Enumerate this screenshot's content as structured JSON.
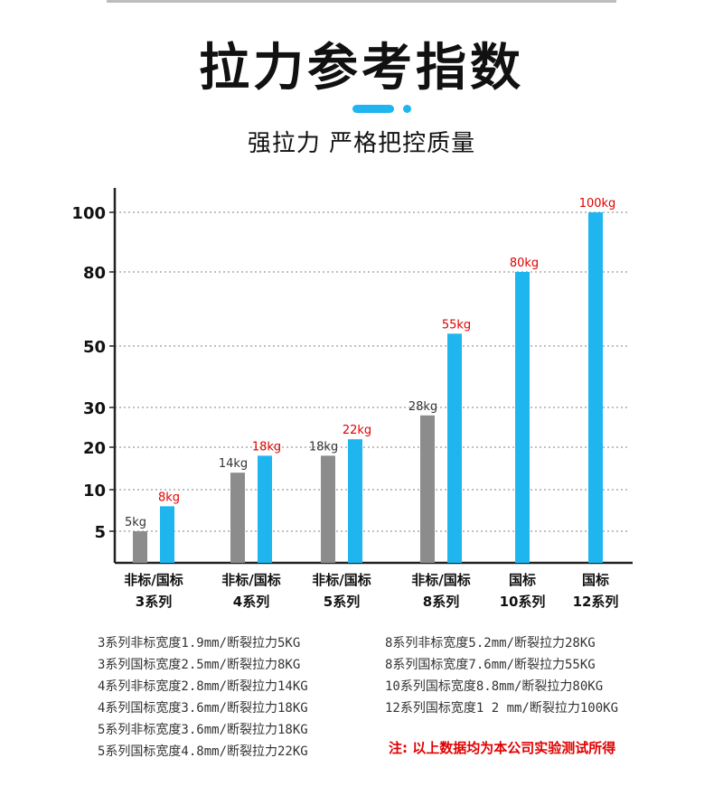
{
  "header": {
    "title": "拉力参考指数",
    "subtitle": "强拉力 严格把控质量"
  },
  "colors": {
    "accent": "#1fb6f0",
    "gray_bar": "#8c8c8c",
    "label_red": "#e00000"
  },
  "chart_data": {
    "type": "bar",
    "title": "拉力参考指数",
    "y_ticks": [
      5,
      10,
      20,
      30,
      50,
      80,
      100
    ],
    "grid": "dotted-horizontal",
    "groups": [
      {
        "line1": "非标/国标",
        "line2": "3系列",
        "bars": [
          {
            "series": "非标",
            "value": 5,
            "label": "5kg"
          },
          {
            "series": "国标",
            "value": 8,
            "label": "8kg"
          }
        ]
      },
      {
        "line1": "非标/国标",
        "line2": "4系列",
        "bars": [
          {
            "series": "非标",
            "value": 14,
            "label": "14kg"
          },
          {
            "series": "国标",
            "value": 18,
            "label": "18kg"
          }
        ]
      },
      {
        "line1": "非标/国标",
        "line2": "5系列",
        "bars": [
          {
            "series": "非标",
            "value": 18,
            "label": "18kg"
          },
          {
            "series": "国标",
            "value": 22,
            "label": "22kg"
          }
        ]
      },
      {
        "line1": "非标/国标",
        "line2": "8系列",
        "bars": [
          {
            "series": "非标",
            "value": 28,
            "label": "28kg"
          },
          {
            "series": "国标",
            "value": 55,
            "label": "55kg"
          }
        ]
      },
      {
        "line1": "国标",
        "line2": "10系列",
        "bars": [
          {
            "series": "国标",
            "value": 80,
            "label": "80kg"
          }
        ]
      },
      {
        "line1": "国标",
        "line2": "12系列",
        "bars": [
          {
            "series": "国标",
            "value": 100,
            "label": "100kg"
          }
        ]
      }
    ]
  },
  "notes_left": [
    "3系列非标宽度1.9mm/断裂拉力5KG",
    "3系列国标宽度2.5mm/断裂拉力8KG",
    "4系列非标宽度2.8mm/断裂拉力14KG",
    "4系列国标宽度3.6mm/断裂拉力18KG",
    "5系列非标宽度3.6mm/断裂拉力18KG",
    "5系列国标宽度4.8mm/断裂拉力22KG"
  ],
  "notes_right": [
    "8系列非标宽度5.2mm/断裂拉力28KG",
    "8系列国标宽度7.6mm/断裂拉力55KG",
    "10系列国标宽度8.8mm/断裂拉力80KG",
    "12系列国标宽度1 2 mm/断裂拉力100KG"
  ],
  "footnote": "注: 以上数据均为本公司实验测试所得"
}
